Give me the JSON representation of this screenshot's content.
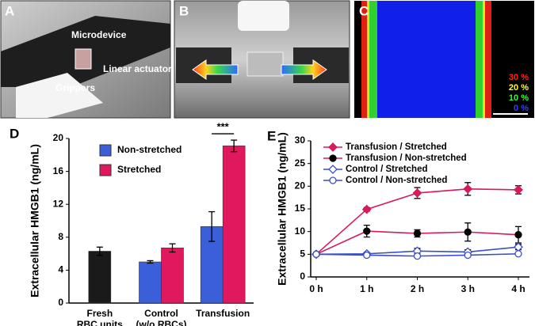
{
  "panels": {
    "a": {
      "label": "A",
      "texts": [
        "Microdevice",
        "Linear actuator",
        "Grippers"
      ]
    },
    "b": {
      "label": "B"
    },
    "c": {
      "label": "C",
      "scale": [
        "30 %",
        "20 %",
        "10 %",
        "0 %"
      ]
    }
  },
  "chart_data": [
    {
      "type": "bar",
      "panel": "D",
      "ylabel": "Extracellular HMGB1 (ng/mL)",
      "categories": [
        [
          "Fresh",
          "RBC units"
        ],
        [
          "Control",
          "(w/o RBCs)"
        ],
        [
          "Transfusion"
        ]
      ],
      "series": [
        {
          "color": "#1a1a1a",
          "values": [
            6.3,
            null,
            null
          ],
          "errors": [
            0.5,
            null,
            null
          ]
        },
        {
          "name": "Non-stretched",
          "color": "#3a5fd8",
          "values": [
            null,
            5.0,
            9.3
          ],
          "errors": [
            null,
            0.15,
            1.8
          ]
        },
        {
          "name": "Stretched",
          "color": "#e0195f",
          "values": [
            null,
            6.7,
            19.1
          ],
          "errors": [
            null,
            0.5,
            0.7
          ]
        }
      ],
      "annotation": "***",
      "ylim": [
        0,
        20
      ],
      "yticks": [
        0,
        4,
        8,
        12,
        16,
        20
      ]
    },
    {
      "type": "line",
      "panel": "E",
      "ylabel": "Extracellular HMGB1 (ng/mL)",
      "categories": [
        "0 h",
        "1 h",
        "2 h",
        "3 h",
        "4 h"
      ],
      "series": [
        {
          "name": "Transfusion / Stretched",
          "color": "#d81a5c",
          "marker": "diamond",
          "filled": true,
          "values": [
            5,
            14.9,
            18.5,
            19.4,
            19.2
          ],
          "errors": [
            0,
            0.4,
            1.2,
            1.4,
            0.9
          ]
        },
        {
          "name": "Transfusion / Non-stretched",
          "color": "#d81a5c",
          "marker": "circle",
          "filled": true,
          "values": [
            5,
            10.1,
            9.6,
            9.9,
            9.3
          ],
          "errors": [
            0,
            1.3,
            0.8,
            2.0,
            1.8
          ]
        },
        {
          "name": "Control / Stretched",
          "color": "#3a4fc8",
          "marker": "diamond",
          "filled": false,
          "values": [
            5,
            5.1,
            5.7,
            5.5,
            6.6
          ],
          "errors": [
            0.2,
            0.3,
            0.6,
            0.5,
            0.6
          ]
        },
        {
          "name": "Control / Non-stretched",
          "color": "#3a4fc8",
          "marker": "circle",
          "filled": false,
          "values": [
            5,
            4.8,
            4.6,
            4.8,
            5.1
          ],
          "errors": [
            0.2,
            0.2,
            0.2,
            0.2,
            0.2
          ]
        }
      ],
      "ylim": [
        0,
        30
      ],
      "yticks": [
        0,
        5,
        10,
        15,
        20,
        25,
        30
      ]
    }
  ]
}
